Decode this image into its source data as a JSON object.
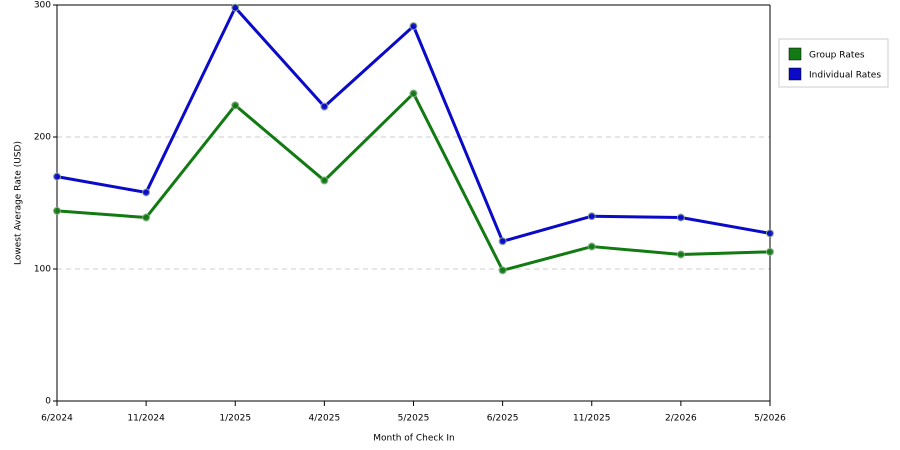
{
  "chart_data": {
    "type": "line",
    "x_label": "Month of Check In",
    "y_label": "Lowest Average Rate (USD)",
    "categories": [
      "6/2024",
      "11/2024",
      "1/2025",
      "4/2025",
      "5/2025",
      "6/2025",
      "11/2025",
      "2/2026",
      "5/2026"
    ],
    "series": [
      {
        "name": "Group Rates",
        "color": "#127a12",
        "values": [
          144,
          139,
          224,
          167,
          233,
          99,
          117,
          111,
          113
        ]
      },
      {
        "name": "Individual Rates",
        "color": "#0a0ac8",
        "values": [
          170,
          158,
          298,
          223,
          284,
          121,
          140,
          139,
          127
        ]
      }
    ],
    "ylim": [
      0,
      300
    ],
    "yticks": [
      0,
      100,
      200,
      300
    ],
    "grid": true,
    "legend": "right"
  }
}
